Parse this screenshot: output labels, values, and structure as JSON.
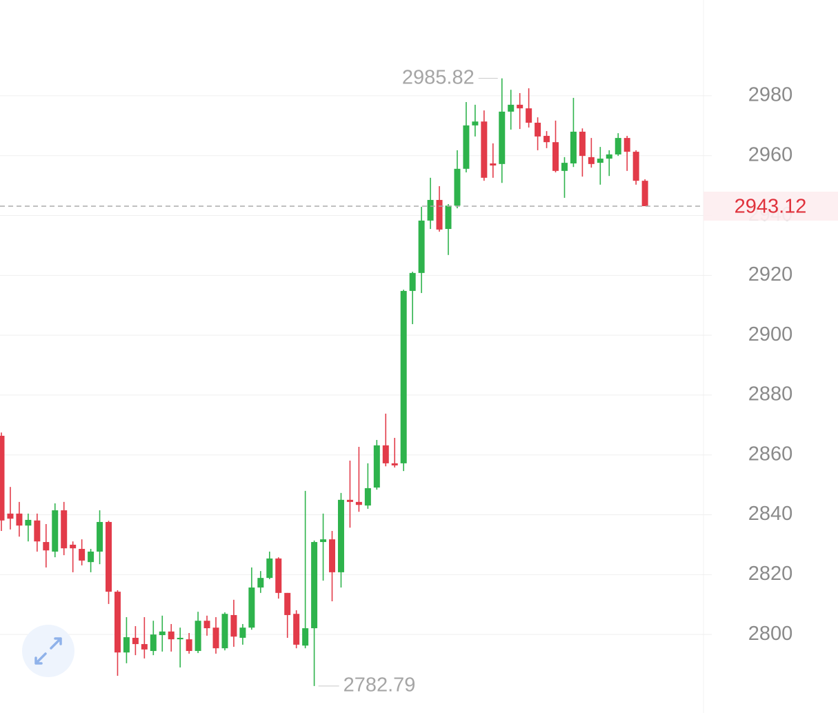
{
  "chart_data": {
    "type": "candlestick",
    "ylim": [
      2777,
      3012
    ],
    "yticks": [
      2800,
      2820,
      2840,
      2860,
      2880,
      2900,
      2920,
      2940,
      2960,
      2980
    ],
    "grid": true,
    "up_color": "#2eb34c",
    "down_color": "#e23b49",
    "high_label": "2985.82",
    "low_label": "2782.79",
    "last_price_label": "2943.12",
    "open": [
      2866.4,
      2840.4,
      2840.4,
      2836.4,
      2838.1,
      2830.9,
      2827.7,
      2841.5,
      2830.0,
      2828.6,
      2824.2,
      2827.7,
      2837.6,
      2814.3,
      2794.0,
      2798.9,
      2796.8,
      2794.5,
      2799.8,
      2801.0,
      2798.4,
      2798.4,
      2794.5,
      2804.6,
      2802.3,
      2795.4,
      2806.5,
      2798.9,
      2802.3,
      2815.7,
      2818.9,
      2825.4,
      2813.9,
      2806.9,
      2796.3,
      2802.1,
      2830.9,
      2831.8,
      2820.8,
      2845.0,
      2844.3,
      2843.1,
      2849.1,
      2863.2,
      2857.2,
      2857.2,
      2914.8,
      2920.8,
      2938.3,
      2945.2,
      2935.5,
      2943.3,
      2955.6,
      2970.1,
      2971.4,
      2957.4,
      2957.2,
      2974.7,
      2977.0,
      2975.8,
      2971.0,
      2966.6,
      2964.5,
      2954.9,
      2957.4,
      2968.0,
      2959.5,
      2957.6,
      2959.0,
      2960.4,
      2965.9,
      2961.3,
      2951.6
    ],
    "high": [
      2867.5,
      2849.3,
      2844.3,
      2840.4,
      2840.4,
      2836.9,
      2843.8,
      2844.3,
      2831.1,
      2831.8,
      2828.6,
      2841.5,
      2838.0,
      2814.8,
      2805.8,
      2802.8,
      2805.8,
      2804.6,
      2806.3,
      2803.5,
      2802.3,
      2800.5,
      2807.6,
      2806.3,
      2805.8,
      2807.4,
      2811.6,
      2803.5,
      2822.4,
      2821.2,
      2827.7,
      2825.8,
      2813.9,
      2808.1,
      2848.0,
      2831.4,
      2840.4,
      2834.6,
      2847.3,
      2858.1,
      2862.7,
      2857.2,
      2865.0,
      2873.8,
      2865.7,
      2915.2,
      2921.2,
      2942.9,
      2952.6,
      2949.8,
      2943.8,
      2961.8,
      2977.9,
      2977.0,
      2975.1,
      2964.1,
      2985.82,
      2982.0,
      2980.9,
      2982.5,
      2972.8,
      2968.2,
      2971.7,
      2959.5,
      2979.3,
      2969.1,
      2965.9,
      2962.9,
      2961.8,
      2967.5,
      2966.6,
      2961.8,
      2952.1
    ],
    "low": [
      2834.6,
      2835.1,
      2832.7,
      2831.1,
      2827.7,
      2822.4,
      2825.8,
      2826.5,
      2820.8,
      2823.1,
      2820.8,
      2823.5,
      2810.2,
      2786.2,
      2790.4,
      2793.1,
      2792.0,
      2793.1,
      2794.3,
      2794.3,
      2789.0,
      2793.6,
      2793.8,
      2799.6,
      2793.6,
      2794.7,
      2795.9,
      2796.6,
      2801.6,
      2813.9,
      2818.5,
      2812.0,
      2798.9,
      2795.4,
      2795.4,
      2782.79,
      2818.0,
      2811.1,
      2815.7,
      2835.7,
      2841.0,
      2842.0,
      2848.4,
      2856.2,
      2855.8,
      2854.6,
      2903.7,
      2914.1,
      2935.5,
      2934.6,
      2926.8,
      2942.4,
      2954.4,
      2966.4,
      2951.6,
      2952.6,
      2950.9,
      2968.7,
      2968.9,
      2969.4,
      2961.8,
      2962.5,
      2954.4,
      2945.9,
      2956.2,
      2953.0,
      2956.0,
      2950.3,
      2953.2,
      2959.9,
      2954.9,
      2950.3,
      2943.12
    ],
    "close": [
      2838.1,
      2838.7,
      2836.4,
      2838.3,
      2831.1,
      2828.1,
      2841.5,
      2828.8,
      2828.8,
      2824.7,
      2827.7,
      2837.6,
      2814.3,
      2794.0,
      2799.1,
      2796.8,
      2795.0,
      2800.0,
      2801.0,
      2798.4,
      2798.9,
      2794.5,
      2804.6,
      2802.1,
      2795.4,
      2806.9,
      2799.3,
      2802.3,
      2815.7,
      2818.9,
      2825.4,
      2813.9,
      2806.5,
      2796.6,
      2802.1,
      2830.9,
      2831.8,
      2820.8,
      2845.0,
      2844.3,
      2843.3,
      2848.9,
      2863.2,
      2857.2,
      2856.5,
      2914.8,
      2920.8,
      2938.3,
      2945.2,
      2935.3,
      2943.3,
      2955.6,
      2970.1,
      2971.4,
      2952.6,
      2956.7,
      2974.7,
      2977.0,
      2975.8,
      2971.0,
      2966.4,
      2964.5,
      2954.9,
      2957.6,
      2968.0,
      2959.9,
      2957.2,
      2959.0,
      2960.4,
      2965.9,
      2961.3,
      2951.6,
      2943.12
    ]
  }
}
